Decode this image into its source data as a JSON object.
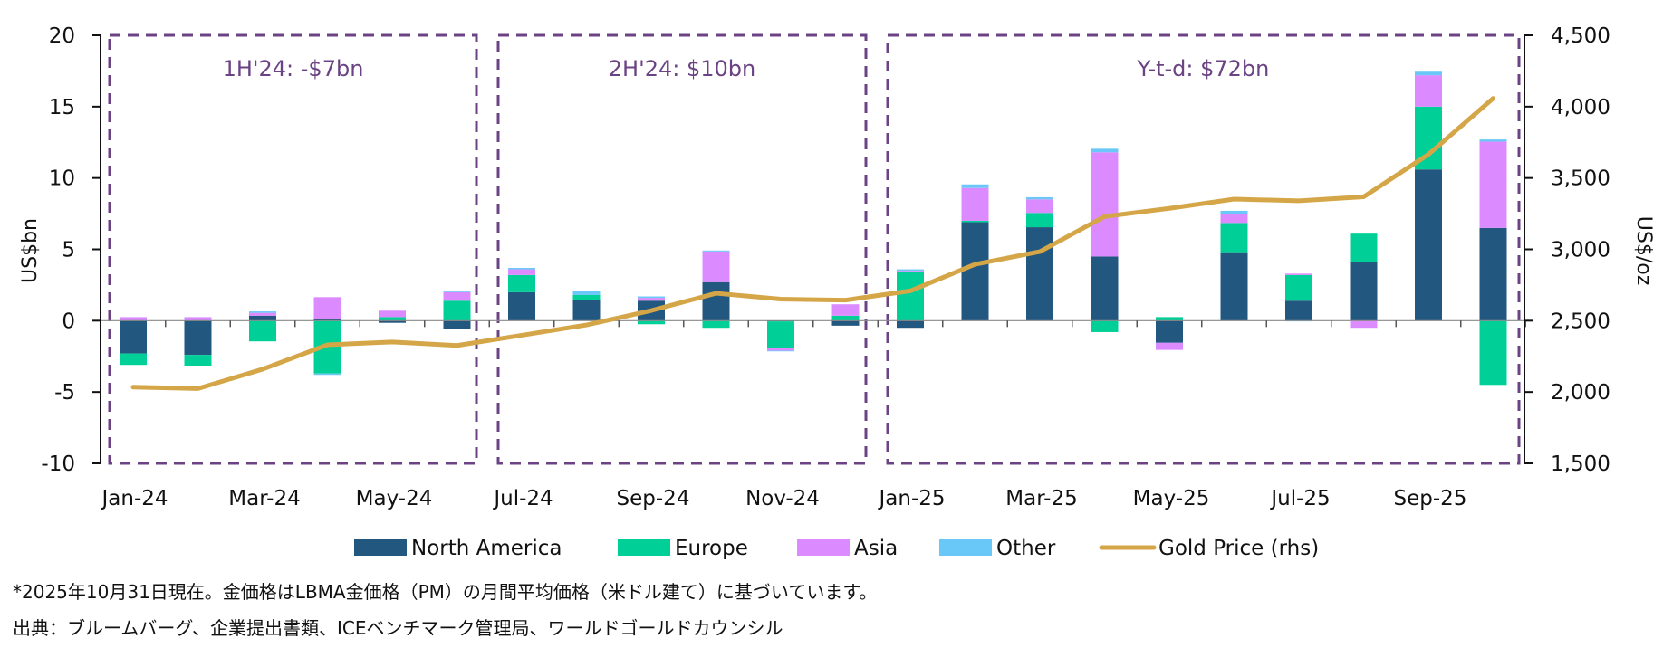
{
  "chart_data": {
    "type": "bar",
    "stacked": true,
    "categories": [
      "Jan-24",
      "Feb-24",
      "Mar-24",
      "Apr-24",
      "May-24",
      "Jun-24",
      "Jul-24",
      "Aug-24",
      "Sep-24",
      "Oct-24",
      "Nov-24",
      "Dec-24",
      "Jan-25",
      "Feb-25",
      "Mar-25",
      "Apr-25",
      "May-25",
      "Jun-25",
      "Jul-25",
      "Aug-25",
      "Sep-25",
      "Oct-25"
    ],
    "xtick_labels": [
      "Jan-24",
      "Mar-24",
      "May-24",
      "Jul-24",
      "Sep-24",
      "Nov-24",
      "Jan-25",
      "Mar-25",
      "May-25",
      "Jul-25",
      "Sep-25"
    ],
    "series": [
      {
        "name": "North America",
        "color": "#22577f",
        "values": [
          -2.3,
          -2.4,
          0.35,
          0.1,
          -0.15,
          -0.6,
          2.0,
          1.45,
          1.4,
          2.7,
          -0.05,
          -0.35,
          -0.5,
          6.9,
          6.55,
          4.5,
          -1.55,
          4.8,
          1.4,
          4.1,
          10.6,
          6.5
        ]
      },
      {
        "name": "Europe",
        "color": "#00d097",
        "values": [
          -0.8,
          -0.75,
          -1.45,
          -3.7,
          0.25,
          1.4,
          1.2,
          0.35,
          -0.25,
          -0.5,
          -1.85,
          0.35,
          3.4,
          0.1,
          1.0,
          -0.8,
          0.25,
          2.05,
          1.8,
          2.0,
          4.4,
          -4.5
        ]
      },
      {
        "name": "Asia",
        "color": "#db8bff",
        "values": [
          0.25,
          0.25,
          0.2,
          1.55,
          0.45,
          0.6,
          0.4,
          0.0,
          0.2,
          2.15,
          -0.2,
          0.8,
          0.1,
          2.3,
          0.95,
          7.3,
          -0.5,
          0.65,
          0.1,
          -0.5,
          2.2,
          6.05
        ]
      },
      {
        "name": "Other",
        "color": "#6ac8f8",
        "values": [
          0.0,
          0.0,
          0.1,
          -0.1,
          0.0,
          0.05,
          0.1,
          0.3,
          0.1,
          0.07,
          -0.05,
          0.0,
          0.1,
          0.25,
          0.15,
          0.25,
          0.0,
          0.2,
          -0.05,
          0.0,
          0.25,
          0.15
        ]
      }
    ],
    "line_series": {
      "name": "Gold Price (rhs)",
      "color": "#d4a647",
      "axis": "right",
      "values": [
        2034,
        2024,
        2160,
        2331,
        2351,
        2326,
        2398,
        2470,
        2571,
        2692,
        2651,
        2644,
        2709,
        2895,
        2984,
        3230,
        3287,
        3352,
        3340,
        3368,
        3665,
        4058
      ]
    },
    "ylabel": "US$bn",
    "ylabel_right": "US$/oz",
    "ylim": [
      -10,
      20
    ],
    "ylim_right": [
      1500,
      4500
    ],
    "yticks": [
      "20",
      "15",
      "10",
      "5",
      "0",
      "-5",
      "-10"
    ],
    "yticks_values": [
      20,
      15,
      10,
      5,
      0,
      -5,
      -10
    ],
    "yticks_right": [
      "4,500",
      "4,000",
      "3,500",
      "3,000",
      "2,500",
      "2,000",
      "1,500"
    ],
    "yticks_right_values": [
      4500,
      4000,
      3500,
      3000,
      2500,
      2000,
      1500
    ],
    "annotations": [
      {
        "text": "1H'24: -$7bn",
        "from": "Jan-24",
        "to": "Jun-24"
      },
      {
        "text": "2H'24: $10bn",
        "from": "Jul-24",
        "to": "Dec-24"
      },
      {
        "text": "Y-t-d: $72bn",
        "from": "Jan-25",
        "to": "Oct-25"
      }
    ],
    "annotation_color": "#6b4384",
    "legend": [
      "North America",
      "Europe",
      "Asia",
      "Other",
      "Gold Price (rhs)"
    ],
    "legend_position": "bottom",
    "grid": false
  },
  "footnotes": {
    "note": "*2025年10月31日現在。金価格はLBMA金価格（PM）の月間平均価格（米ドル建て）に基づいています。",
    "source": "出典：ブルームバーグ、企業提出書類、ICEベンチマーク管理局、ワールドゴールドカウンシル"
  }
}
